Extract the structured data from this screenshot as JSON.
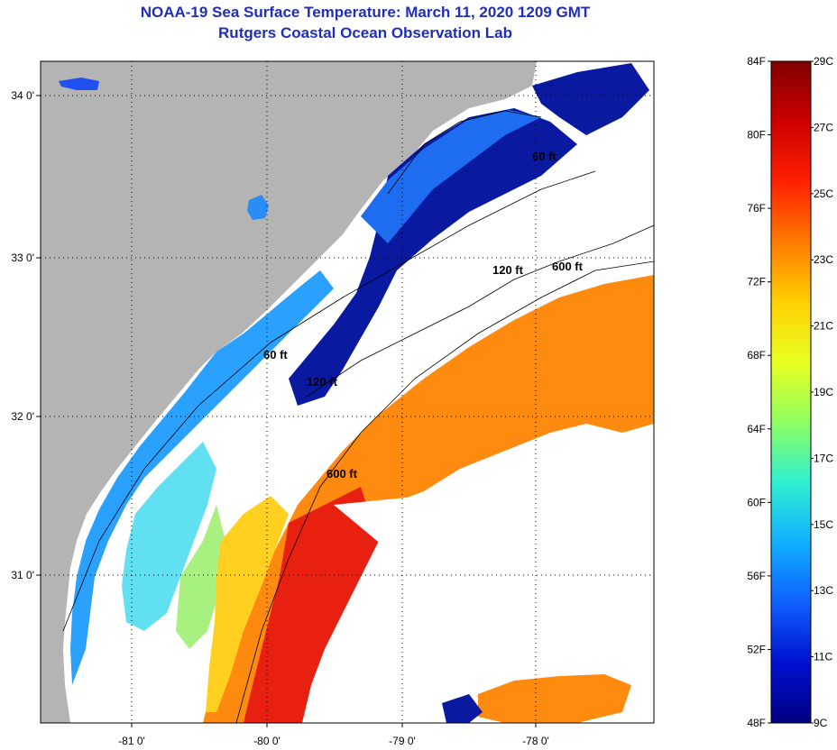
{
  "header": {
    "title": "NOAA-19 Sea Surface Temperature:  March 11, 2020 1209 GMT",
    "subtitle": "Rutgers Coastal Ocean Observation Lab"
  },
  "map": {
    "lat_ticks": [
      "34 0'",
      "33 0'",
      "32 0'",
      "31 0'"
    ],
    "lon_ticks": [
      "-81 0'",
      "-80 0'",
      "-79 0'",
      "-78 0'"
    ],
    "contour_labels": [
      "60 ft",
      "120 ft",
      "600 ft",
      "60 ft",
      "120 ft",
      "600 ft"
    ],
    "land_color": "#b4b4b4",
    "cloud_color": "#ffffff"
  },
  "colorbar": {
    "fahrenheit_labels": [
      "84F",
      "80F",
      "76F",
      "72F",
      "68F",
      "64F",
      "60F",
      "56F",
      "52F",
      "48F"
    ],
    "celsius_labels": [
      "29C",
      "27C",
      "25C",
      "23C",
      "21C",
      "19C",
      "17C",
      "15C",
      "13C",
      "11C",
      "9C"
    ],
    "colors": [
      "#800000",
      "#cc0000",
      "#ff2000",
      "#ff7a00",
      "#ffd000",
      "#e8ff20",
      "#90ff60",
      "#30f0d0",
      "#10b0ff",
      "#1060ff",
      "#0010d0",
      "#000080"
    ]
  }
}
